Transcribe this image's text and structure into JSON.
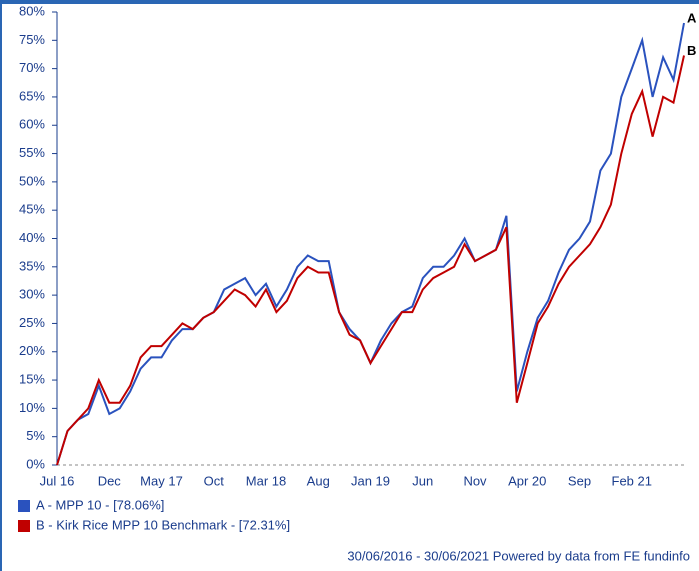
{
  "chart_data": {
    "type": "line",
    "categories": [
      "Jul 16",
      null,
      null,
      null,
      null,
      "Dec",
      null,
      null,
      null,
      null,
      "May 17",
      null,
      null,
      null,
      null,
      "Oct",
      null,
      null,
      null,
      null,
      "Mar 18",
      null,
      null,
      null,
      null,
      "Aug",
      null,
      null,
      null,
      null,
      "Jan 19",
      null,
      null,
      null,
      null,
      "Jun",
      null,
      null,
      null,
      null,
      "Nov",
      null,
      null,
      null,
      null,
      "Apr 20",
      null,
      null,
      null,
      null,
      "Sep",
      null,
      null,
      null,
      null,
      "Feb 21",
      null,
      null,
      null,
      null,
      null
    ],
    "series": [
      {
        "name": "A - MPP 10 - [78.06%]",
        "end_label": "A",
        "color": "#2a52be",
        "values": [
          0,
          6,
          8,
          9,
          14,
          9,
          10,
          13,
          17,
          19,
          19,
          22,
          24,
          24,
          26,
          27,
          31,
          32,
          33,
          30,
          32,
          28,
          31,
          35,
          37,
          36,
          36,
          27,
          24,
          22,
          18,
          22,
          25,
          27,
          28,
          33,
          35,
          35,
          37,
          40,
          36,
          37,
          38,
          44,
          13,
          20,
          26,
          29,
          34,
          38,
          40,
          43,
          52,
          55,
          65,
          70,
          75,
          65,
          72,
          68,
          78.06
        ]
      },
      {
        "name": "B - Kirk Rice MPP 10 Benchmark - [72.31%]",
        "end_label": "B",
        "color": "#c00000",
        "values": [
          0,
          6,
          8,
          10,
          15,
          11,
          11,
          14,
          19,
          21,
          21,
          23,
          25,
          24,
          26,
          27,
          29,
          31,
          30,
          28,
          31,
          27,
          29,
          33,
          35,
          34,
          34,
          27,
          23,
          22,
          18,
          21,
          24,
          27,
          27,
          31,
          33,
          34,
          35,
          39,
          36,
          37,
          38,
          42,
          11,
          18,
          25,
          28,
          32,
          35,
          37,
          39,
          42,
          46,
          55,
          62,
          66,
          58,
          65,
          64,
          72.31
        ]
      }
    ],
    "ylim": [
      0,
      80
    ],
    "yticks": [
      {
        "value": 0,
        "label": "0%"
      },
      {
        "value": 5,
        "label": "5%"
      },
      {
        "value": 10,
        "label": "10%"
      },
      {
        "value": 15,
        "label": "15%"
      },
      {
        "value": 20,
        "label": "20%"
      },
      {
        "value": 25,
        "label": "25%"
      },
      {
        "value": 30,
        "label": "30%"
      },
      {
        "value": 35,
        "label": "35%"
      },
      {
        "value": 40,
        "label": "40%"
      },
      {
        "value": 45,
        "label": "45%"
      },
      {
        "value": 50,
        "label": "50%"
      },
      {
        "value": 55,
        "label": "55%"
      },
      {
        "value": 60,
        "label": "60%"
      },
      {
        "value": 65,
        "label": "65%"
      },
      {
        "value": 70,
        "label": "70%"
      },
      {
        "value": 75,
        "label": "75%"
      },
      {
        "value": 80,
        "label": "80%"
      }
    ],
    "footer": "30/06/2016 - 30/06/2021 Powered by data from FE fundinfo"
  }
}
